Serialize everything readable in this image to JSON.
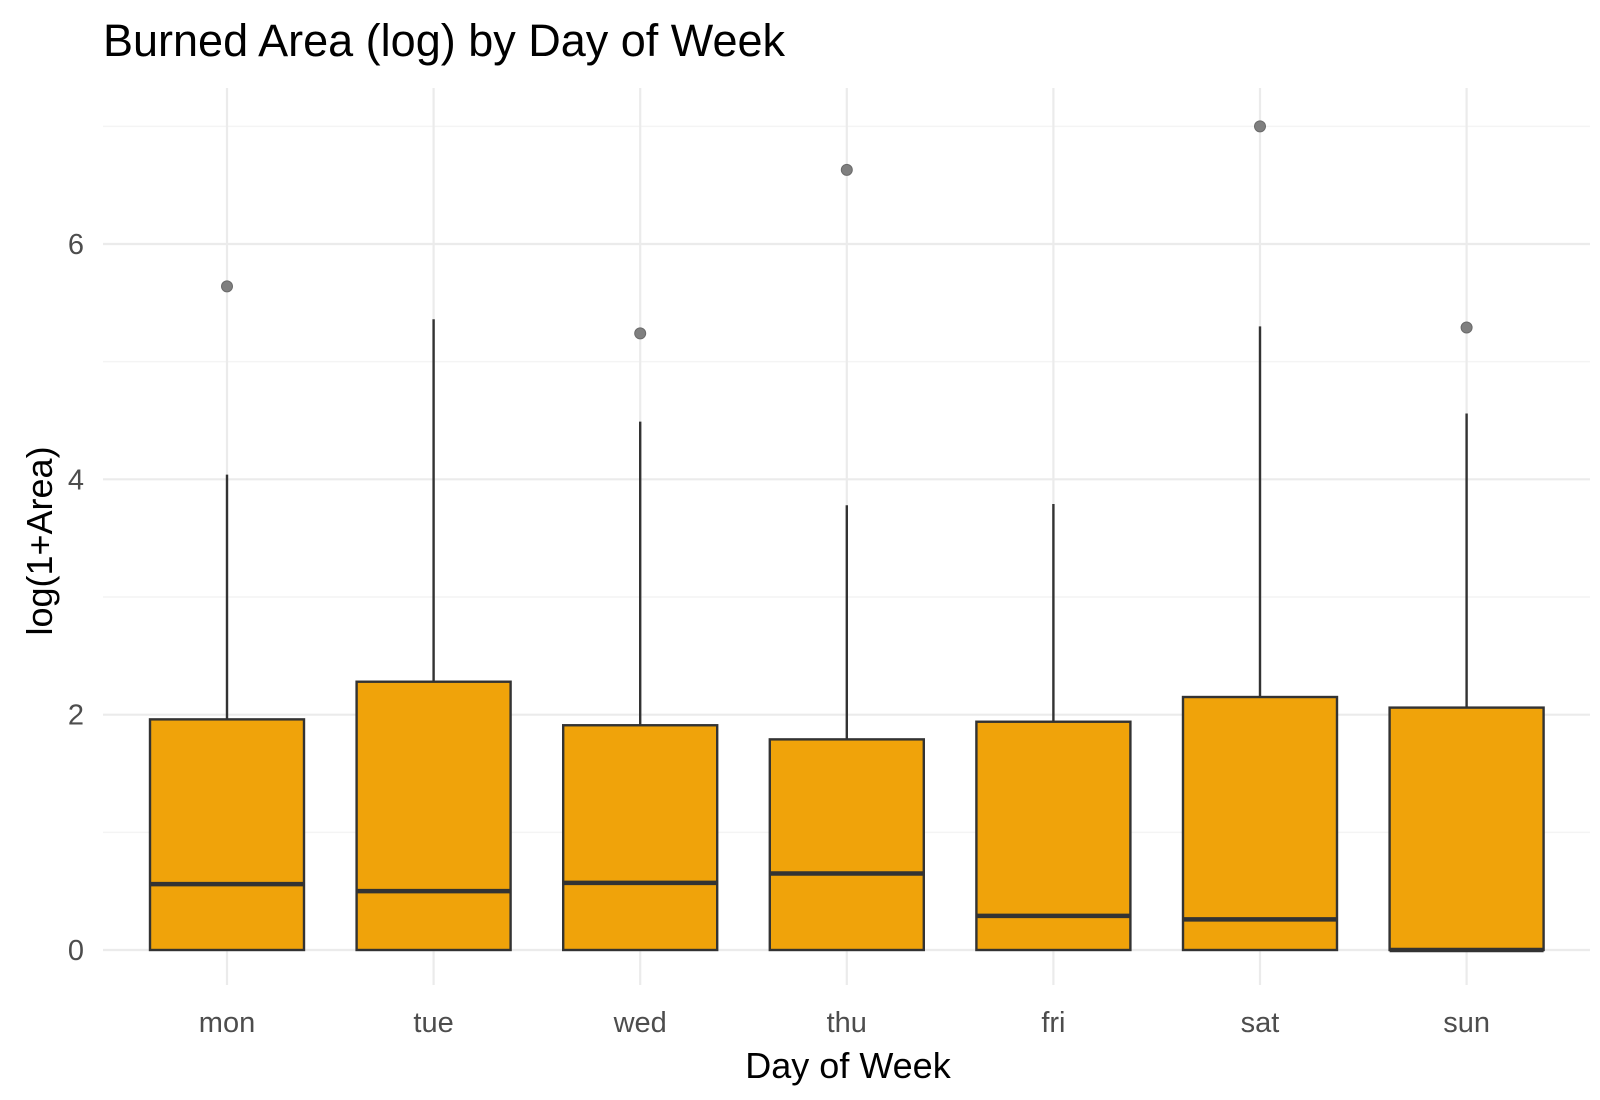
{
  "chart_data": {
    "type": "box",
    "title": "Burned Area (log) by Day of Week",
    "xlabel": "Day of Week",
    "ylabel": "log(1+Area)",
    "categories": [
      "mon",
      "tue",
      "wed",
      "thu",
      "fri",
      "sat",
      "sun"
    ],
    "ylim": [
      -0.27,
      7.3
    ],
    "y_ticks": [
      0,
      2,
      4,
      6
    ],
    "y_minor_ticks": [
      1,
      3,
      5,
      7
    ],
    "grid": true,
    "legend": "none",
    "boxes": [
      {
        "category": "mon",
        "min": 0,
        "q1": 0,
        "median": 0.56,
        "q3": 1.96,
        "max": 4.04,
        "outliers": [
          5.64
        ]
      },
      {
        "category": "tue",
        "min": 0,
        "q1": 0,
        "median": 0.5,
        "q3": 2.28,
        "max": 5.36,
        "outliers": []
      },
      {
        "category": "wed",
        "min": 0,
        "q1": 0,
        "median": 0.57,
        "q3": 1.91,
        "max": 4.49,
        "outliers": [
          5.24
        ]
      },
      {
        "category": "thu",
        "min": 0,
        "q1": 0,
        "median": 0.65,
        "q3": 1.79,
        "max": 3.78,
        "outliers": [
          6.63
        ]
      },
      {
        "category": "fri",
        "min": 0,
        "q1": 0,
        "median": 0.29,
        "q3": 1.94,
        "max": 3.79,
        "outliers": []
      },
      {
        "category": "sat",
        "min": 0,
        "q1": 0,
        "median": 0.26,
        "q3": 2.15,
        "max": 5.3,
        "outliers": [
          7.0
        ]
      },
      {
        "category": "sun",
        "min": 0,
        "q1": 0,
        "median": 0.0,
        "q3": 2.06,
        "max": 4.56,
        "outliers": [
          5.29
        ]
      }
    ],
    "colors": {
      "box_fill": "#F0A30A",
      "box_stroke": "#333333",
      "whisker": "#333333",
      "outlier": "#7f7f7f",
      "grid_major": "#EBEBEB",
      "grid_minor": "#F4F4F4",
      "tick_text": "#4D4D4D",
      "title_text": "#000000"
    }
  }
}
